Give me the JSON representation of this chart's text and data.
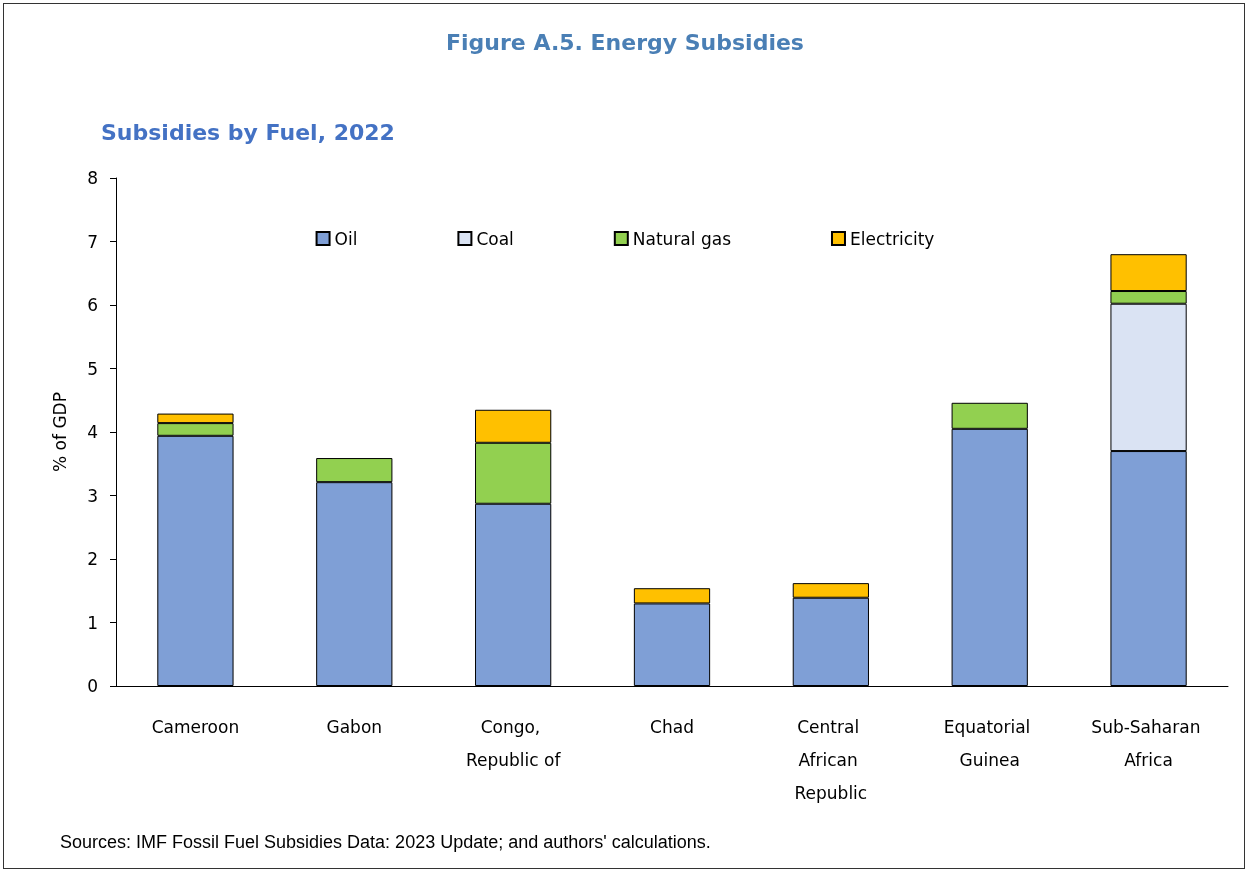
{
  "chart_data": {
    "type": "bar",
    "title": "Figure A.5. Energy Subsidies",
    "subtitle": "Subsidies by Fuel, 2022",
    "ylabel": "% of GDP",
    "categories": [
      "Cameroon",
      "Gabon",
      "Congo, Republic of",
      "Chad",
      "Central African Republic",
      "Equatorial Guinea",
      "Sub-Saharan Africa"
    ],
    "series": [
      {
        "name": "Oil",
        "color": "#7f9fd6",
        "values": [
          3.94,
          3.21,
          2.87,
          1.3,
          1.39,
          4.05,
          3.7
        ]
      },
      {
        "name": "Coal",
        "color": "#dae3f3",
        "values": [
          null,
          null,
          null,
          null,
          null,
          null,
          2.32
        ]
      },
      {
        "name": "Natural gas",
        "color": "#92d050",
        "values": [
          0.2,
          0.38,
          0.96,
          null,
          null,
          0.41,
          0.2
        ]
      },
      {
        "name": "Electricity",
        "color": "#ffc000",
        "values": [
          0.15,
          null,
          0.52,
          0.24,
          0.23,
          null,
          0.58
        ]
      }
    ],
    "stacked": true,
    "ylim": [
      0,
      8
    ],
    "yticks": [
      0,
      1,
      2,
      3,
      4,
      5,
      6,
      7,
      8
    ],
    "grid": false,
    "legend": "top",
    "annotations": [
      "Sources: IMF Fossil Fuel Subsidies Data: 2023 Update; and authors' calculations."
    ]
  }
}
